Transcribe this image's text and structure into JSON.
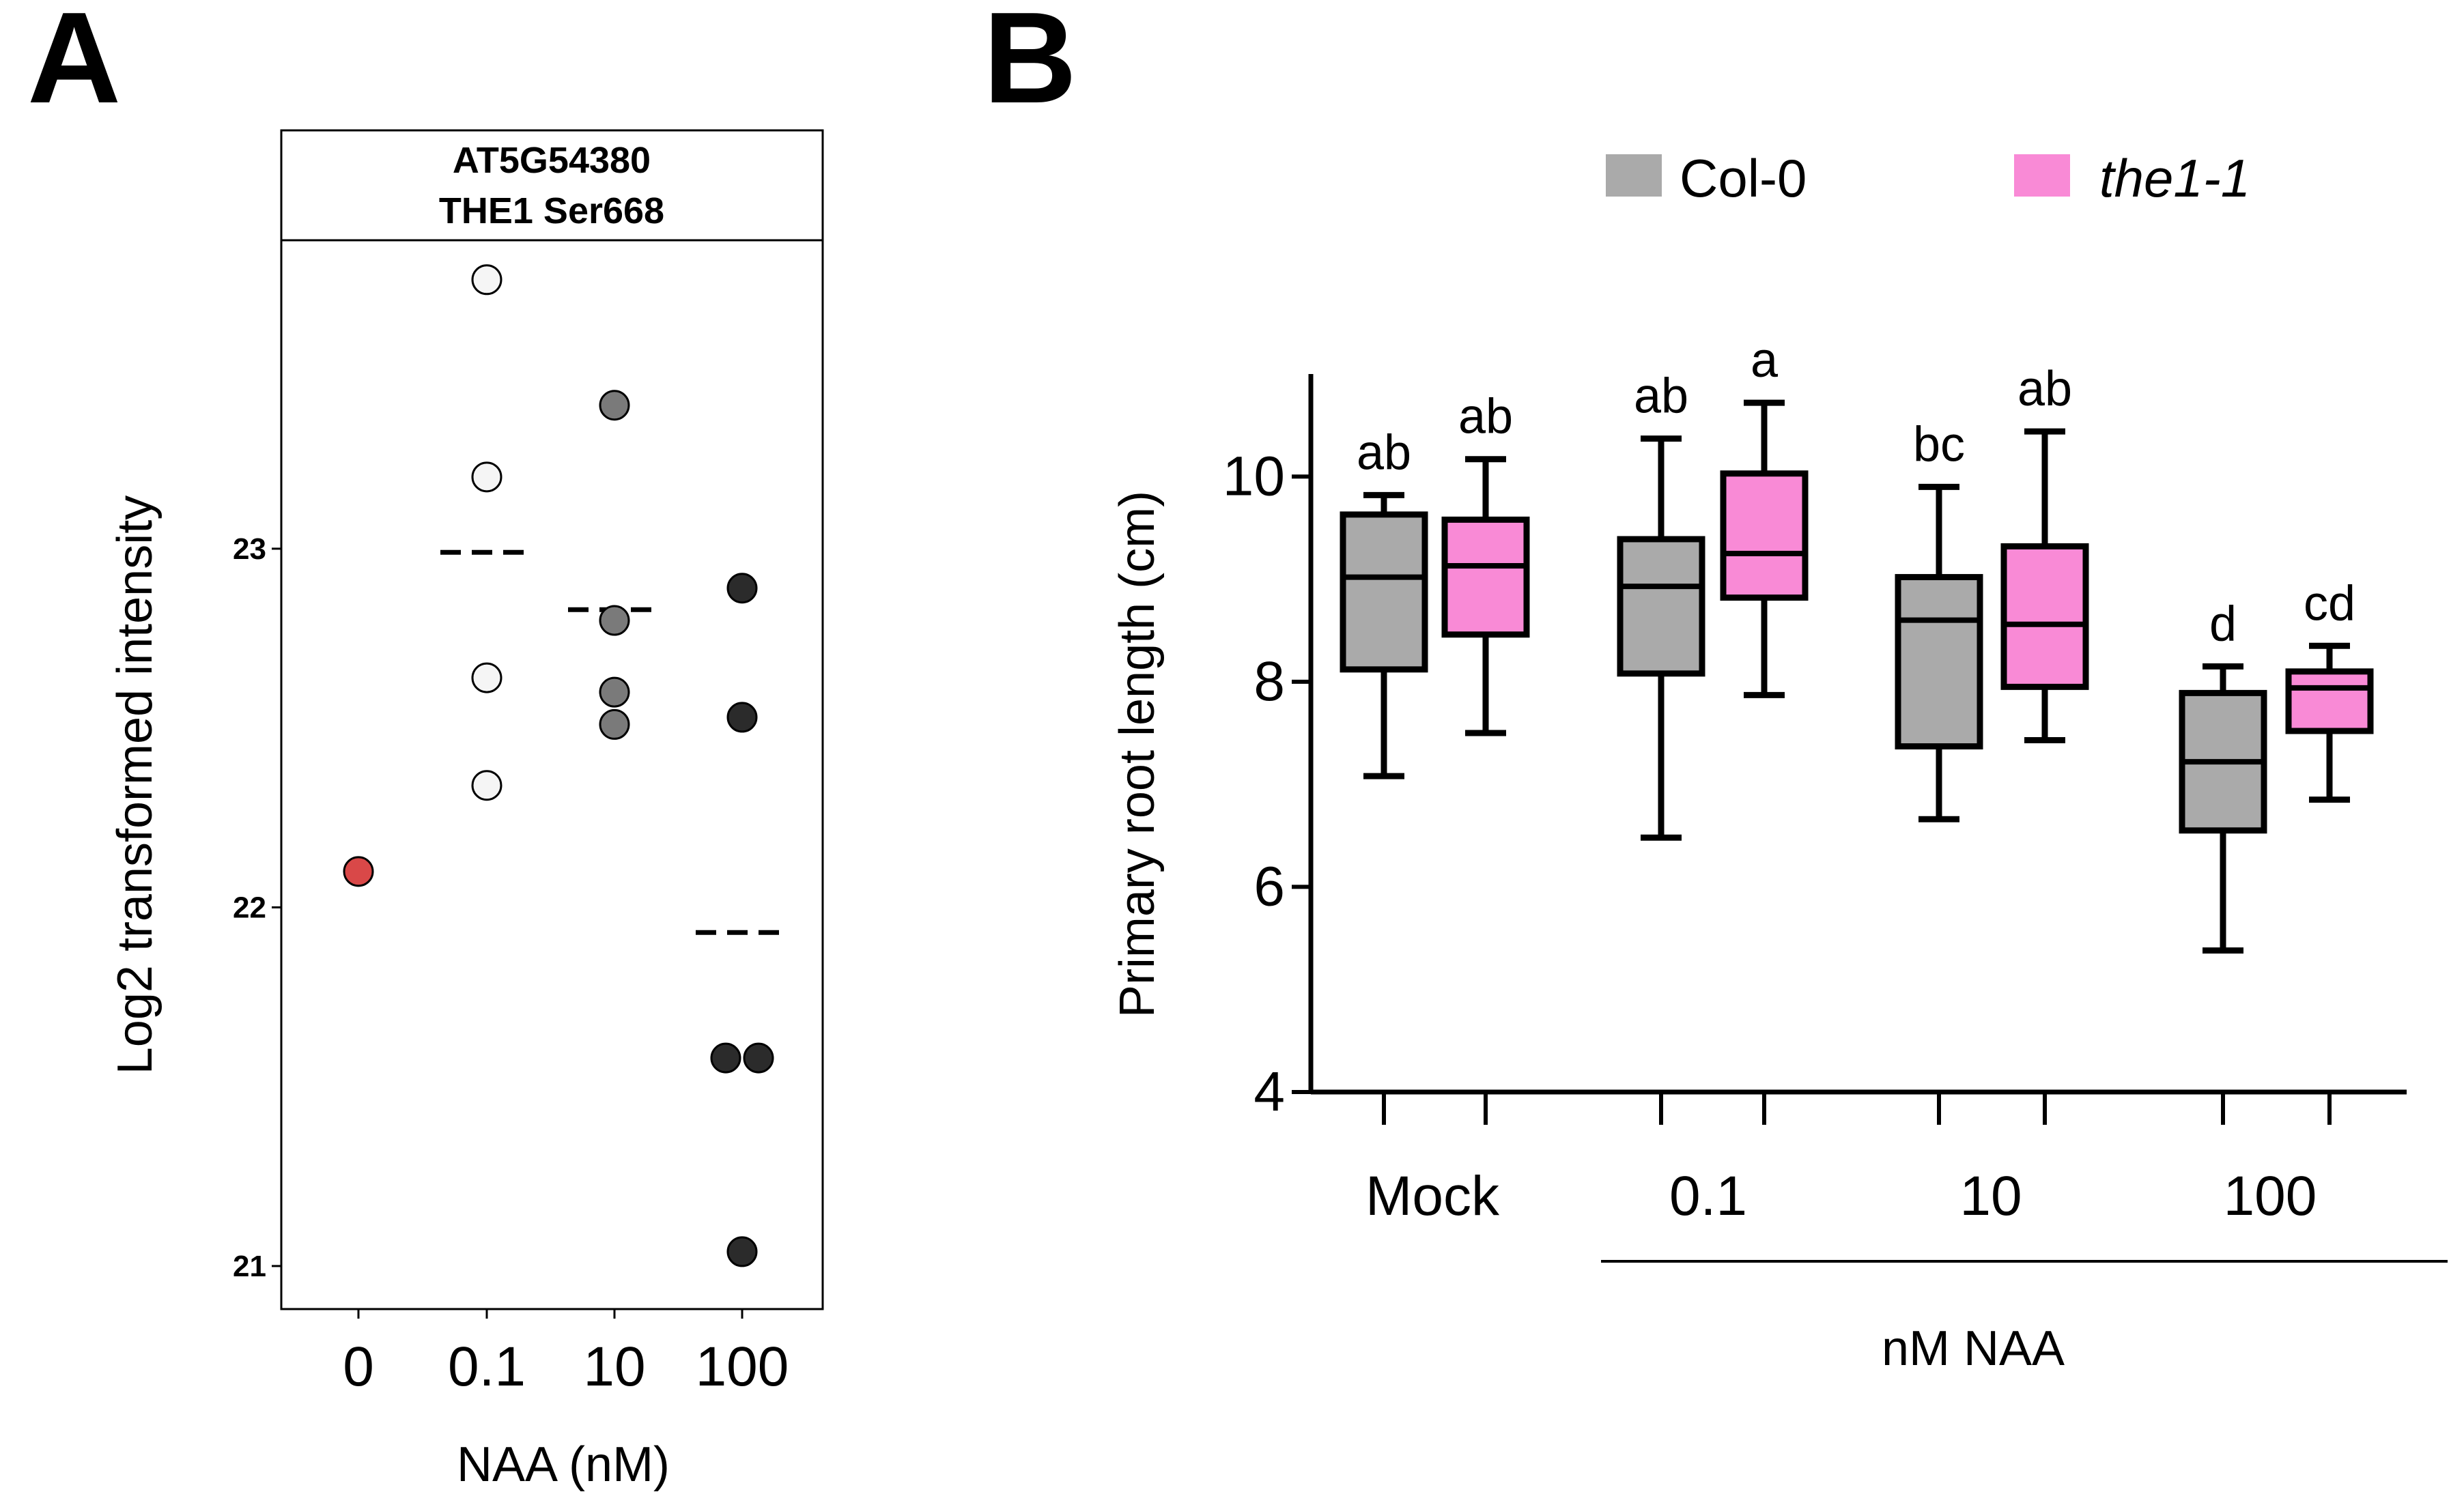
{
  "chart_data": [
    {
      "panel": "A",
      "type": "scatter",
      "strip_title": [
        "AT5G54380",
        "THE1 Ser668"
      ],
      "xlabel": "NAA (nM)",
      "ylabel": "Log2 transformed intensity",
      "categories": [
        "0",
        "0.1",
        "10",
        "100"
      ],
      "yticks": [
        "21",
        "22",
        "23"
      ],
      "ylim": [
        20.88,
        23.86
      ],
      "colors": {
        "0": "#d94848",
        "0.1": "#f5f5f5",
        "10": "#7a7a7a",
        "100": "#2b2b2b"
      },
      "points": [
        {
          "group": "0",
          "y": 22.1
        },
        {
          "group": "0.1",
          "y": 23.75
        },
        {
          "group": "0.1",
          "y": 23.2
        },
        {
          "group": "0.1",
          "y": 22.64
        },
        {
          "group": "0.1",
          "y": 22.34
        },
        {
          "group": "10",
          "y": 23.4
        },
        {
          "group": "10",
          "y": 22.8
        },
        {
          "group": "10",
          "y": 22.6
        },
        {
          "group": "10",
          "y": 22.51
        },
        {
          "group": "100",
          "y": 22.89
        },
        {
          "group": "100",
          "y": 22.53
        },
        {
          "group": "100",
          "y": 21.58
        },
        {
          "group": "100",
          "y": 21.58
        },
        {
          "group": "100",
          "y": 21.04
        }
      ],
      "means": [
        {
          "group": "0.1",
          "y": 22.99
        },
        {
          "group": "10",
          "y": 22.83
        },
        {
          "group": "100",
          "y": 21.93
        }
      ]
    },
    {
      "panel": "B",
      "type": "box",
      "ylabel": "Primary root length (cm)",
      "xlabel": "nM NAA",
      "categories": [
        "Mock",
        "0.1",
        "10",
        "100"
      ],
      "yticks": [
        "4",
        "6",
        "8",
        "10"
      ],
      "ylim": [
        4,
        11
      ],
      "legend": [
        {
          "name": "Col-0",
          "color": "#aaaaaa",
          "italic": false
        },
        {
          "name": "the1-1",
          "color": "#f98ad6",
          "italic": true
        }
      ],
      "series": [
        {
          "name": "Col-0",
          "boxes": [
            {
              "category": "Mock",
              "min": 7.08,
              "q1": 8.12,
              "median": 9.02,
              "q3": 9.63,
              "max": 9.82,
              "letter": "ab"
            },
            {
              "category": "0.1",
              "min": 6.48,
              "q1": 8.08,
              "median": 8.93,
              "q3": 9.39,
              "max": 10.37,
              "letter": "ab"
            },
            {
              "category": "10",
              "min": 6.66,
              "q1": 7.37,
              "median": 8.6,
              "q3": 9.02,
              "max": 9.9,
              "letter": "bc"
            },
            {
              "category": "100",
              "min": 5.38,
              "q1": 6.55,
              "median": 7.22,
              "q3": 7.89,
              "max": 8.15,
              "letter": "d"
            }
          ]
        },
        {
          "name": "the1-1",
          "boxes": [
            {
              "category": "Mock",
              "min": 7.5,
              "q1": 8.46,
              "median": 9.13,
              "q3": 9.58,
              "max": 10.17,
              "letter": "ab"
            },
            {
              "category": "0.1",
              "min": 7.87,
              "q1": 8.82,
              "median": 9.25,
              "q3": 10.03,
              "max": 10.72,
              "letter": "a"
            },
            {
              "category": "10",
              "min": 7.43,
              "q1": 7.95,
              "median": 8.56,
              "q3": 9.32,
              "max": 10.44,
              "letter": "ab"
            },
            {
              "category": "100",
              "min": 6.85,
              "q1": 7.52,
              "median": 7.94,
              "q3": 8.1,
              "max": 8.35,
              "letter": "cd"
            }
          ]
        }
      ]
    }
  ],
  "panel_labels": {
    "a": "A",
    "b": "B"
  }
}
